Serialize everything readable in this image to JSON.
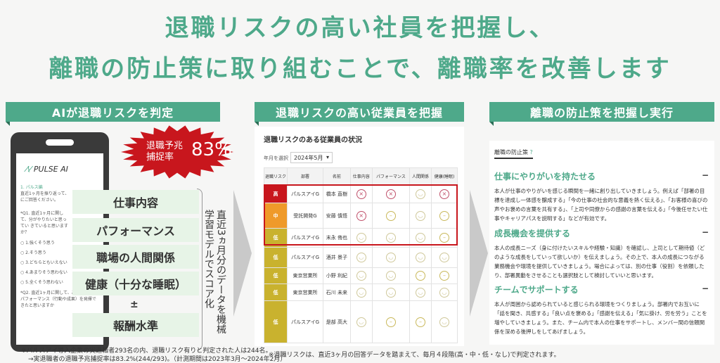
{
  "headline": {
    "line1": "退職リスクの高い社員を把握し、",
    "line2": "離職の防止策に取り組むことで、離職率を改善します"
  },
  "left": {
    "header": "AIが退職リスクを判定",
    "badge_label": "退職予兆\n捕捉率",
    "badge_value": "83%",
    "app_name": "PULSE AI",
    "screen": {
      "section": "1. パルス編",
      "intro": "直近1ヶ月を振り返って、にご回答ください。",
      "q1": "*Q1. 直近1ヶ月に関して、分がやりたいと思ってい きていると思いますか？",
      "options": [
        "1.強くそう思う",
        "2.そう思う",
        "3.どちらともいえない",
        "4.あまりそう思わない",
        "5.全くそう思わない"
      ],
      "q2": "*Q2. 直近1ヶ月に関して、あなたは良いパフォーマンス（行動や成果）を発揮できたと思いますか"
    },
    "factors": [
      "仕事内容",
      "パフォーマンス",
      "職場の人間関係",
      "健康（十分な睡眠）",
      "報酬水準"
    ],
    "plus": "±",
    "vertical_text": "直近3ヵ月分のデータを機械学習モデルでスコア化",
    "note1": "※パルスアイ導入企業の実退職者293名の内、退職リスク有りと判定された人は244名。",
    "note2": "→実退職者の退職予兆捕捉率は83.2%(244/293)。（計測期間は2023年3月～2024年2月）"
  },
  "middle": {
    "header": "退職リスクの高い従業員を把握",
    "title": "退職リスクのある従業員の状況",
    "month_label": "年月を選択",
    "month_value": "2024年5月",
    "columns": [
      "退職リスク",
      "部署",
      "名前",
      "仕事内容",
      "パフォーマンス",
      "人間関係",
      "健康(睡眠)"
    ],
    "risk_colors": {
      "高": "#c8161d",
      "中": "#ef9a2a",
      "低": "#c9b22e"
    },
    "rows": [
      {
        "risk": "高",
        "dept": "パルスアイG",
        "name": "橋本 直樹",
        "faces": [
          "sad",
          "sad",
          "happy",
          "sad"
        ]
      },
      {
        "risk": "中",
        "dept": "受託開発G",
        "name": "安藤 慎悟",
        "faces": [
          "sad",
          "neutral",
          "happy",
          "neutral"
        ]
      },
      {
        "risk": "低",
        "dept": "パルスアイG",
        "name": "末永 侑也",
        "faces": [
          "happy",
          "happy",
          "happy",
          "neutral"
        ]
      },
      {
        "risk": "低",
        "dept": "パルスアイG",
        "name": "酒井 景子",
        "faces": [
          "happy",
          "happy",
          "happy",
          "happy"
        ]
      },
      {
        "risk": "低",
        "dept": "東京営業所",
        "name": "小野 利紀",
        "faces": [
          "happy",
          "happy",
          "neutral",
          "neutral"
        ]
      },
      {
        "risk": "低",
        "dept": "東京営業所",
        "name": "石川 未来",
        "faces": [
          "happy",
          "happy",
          "happy",
          "happy"
        ]
      },
      {
        "risk": "低",
        "dept": "パルスアイG",
        "name": "是部 高大",
        "faces": [
          "happy",
          "neutral",
          "neutral",
          "happy"
        ]
      }
    ],
    "note": "※退職リスクは、直近3ヶ月の回答データを踏まえて、毎月４段階(高・中・低・なし)で判定されます。"
  },
  "right": {
    "header": "離職の防止策を把握し実行",
    "tab": "離職の防止策",
    "help": "?",
    "collapse": "−",
    "sections": [
      {
        "title": "仕事にやりがいを持たせる",
        "body": "本人が仕事のやりがいを感じる瞬間を一緒に創り出していきましょう。例えば「部署の目標を達成し一体感を醸成する」「今の仕事の社会的な意義を熱く伝える」、「お客様の喜びの声やお褒めの言葉を共有する」、「上司や同僚からの感謝の言葉を伝える」「今後任せたい仕事やキャリアパスを説明する」などが有効です。"
      },
      {
        "title": "成長機会を提供する",
        "body": "本人の成長ニーズ（身に付けたいスキルや経験・知識）を確認し、上司として期待値（どのような成長をしていって欲しいか）を伝えましょう。その上で、本人の成長につながる業務機会や環境を提供していきましょう。場合によっては、別の仕事（役割）を依頼したり、部署異動をさせることも選択肢として検討していいと思います。"
      },
      {
        "title": "チームでサポートする",
        "body": "本人が周囲から認められていると感じられる環境をつくりましょう。部署内でお互いに「話を聞き、共感する」「良い点を褒める」「感謝を伝える」「気に掛け、労を労う」ことを増やしていきましょう。また、チーム内で本人の仕事をサポートし、メンバー間の信頼関係を深める後押しをしてあげましょう。"
      }
    ]
  },
  "colors": {
    "accent": "#4ea98a",
    "badge": "#c8161d"
  }
}
